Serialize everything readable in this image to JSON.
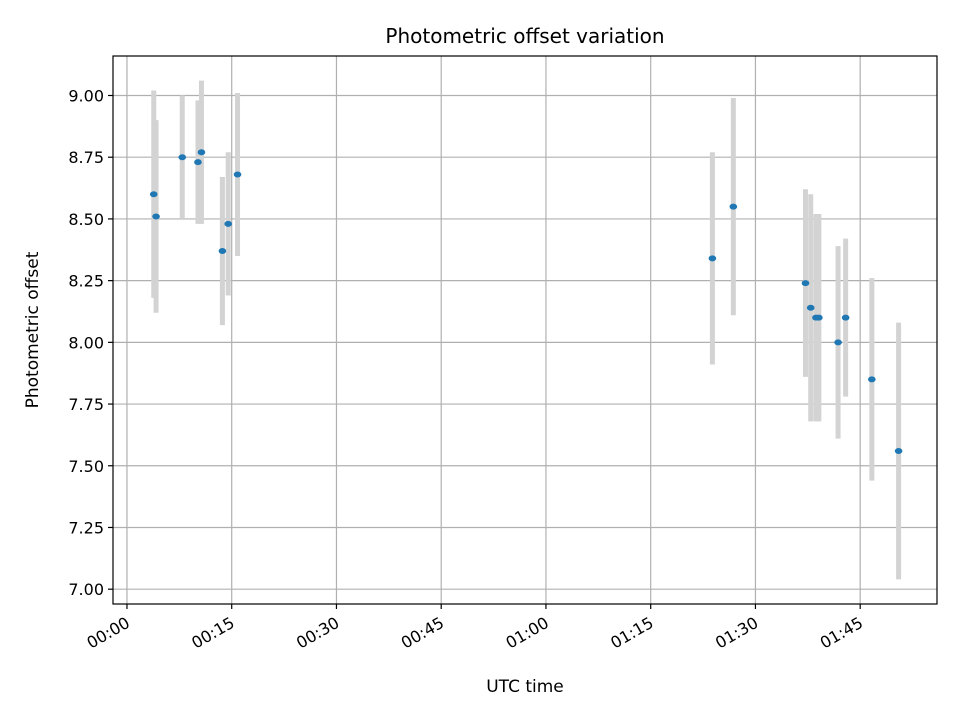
{
  "chart_data": {
    "type": "scatter",
    "title": "Photometric offset variation",
    "xlabel": "UTC time",
    "ylabel": "Photometric offset",
    "x_axis": "time",
    "xlim": [
      "23:58",
      "01:56"
    ],
    "ylim": [
      6.94,
      9.16
    ],
    "xticks": [
      "00:00",
      "00:15",
      "00:30",
      "00:45",
      "01:00",
      "01:15",
      "01:30",
      "01:45"
    ],
    "yticks": [
      "7.00",
      "7.25",
      "7.50",
      "7.75",
      "8.00",
      "8.25",
      "8.50",
      "8.75",
      "9.00"
    ],
    "grid": true,
    "colors": {
      "point": "#1f77b4",
      "errorbar": "#d3d3d3",
      "grid": "#b0b0b0"
    },
    "series": [
      {
        "points": [
          {
            "x": "00:03:50",
            "y": 8.6,
            "yerr": 0.42
          },
          {
            "x": "00:04:10",
            "y": 8.51,
            "yerr": 0.39
          },
          {
            "x": "00:07:55",
            "y": 8.75,
            "yerr": 0.25
          },
          {
            "x": "00:10:10",
            "y": 8.73,
            "yerr": 0.25
          },
          {
            "x": "00:10:40",
            "y": 8.77,
            "yerr": 0.29
          },
          {
            "x": "00:13:40",
            "y": 8.37,
            "yerr": 0.3
          },
          {
            "x": "00:14:30",
            "y": 8.48,
            "yerr": 0.29
          },
          {
            "x": "00:15:50",
            "y": 8.68,
            "yerr": 0.33
          },
          {
            "x": "01:23:50",
            "y": 8.34,
            "yerr": 0.43
          },
          {
            "x": "01:26:50",
            "y": 8.55,
            "yerr": 0.44
          },
          {
            "x": "01:37:10",
            "y": 8.24,
            "yerr": 0.38
          },
          {
            "x": "01:37:55",
            "y": 8.14,
            "yerr": 0.46
          },
          {
            "x": "01:38:40",
            "y": 8.1,
            "yerr": 0.42
          },
          {
            "x": "01:39:05",
            "y": 8.1,
            "yerr": 0.42
          },
          {
            "x": "01:41:50",
            "y": 8.0,
            "yerr": 0.39
          },
          {
            "x": "01:42:55",
            "y": 8.1,
            "yerr": 0.32
          },
          {
            "x": "01:46:40",
            "y": 7.85,
            "yerr": 0.41
          },
          {
            "x": "01:50:30",
            "y": 7.56,
            "yerr": 0.52
          }
        ]
      }
    ]
  }
}
